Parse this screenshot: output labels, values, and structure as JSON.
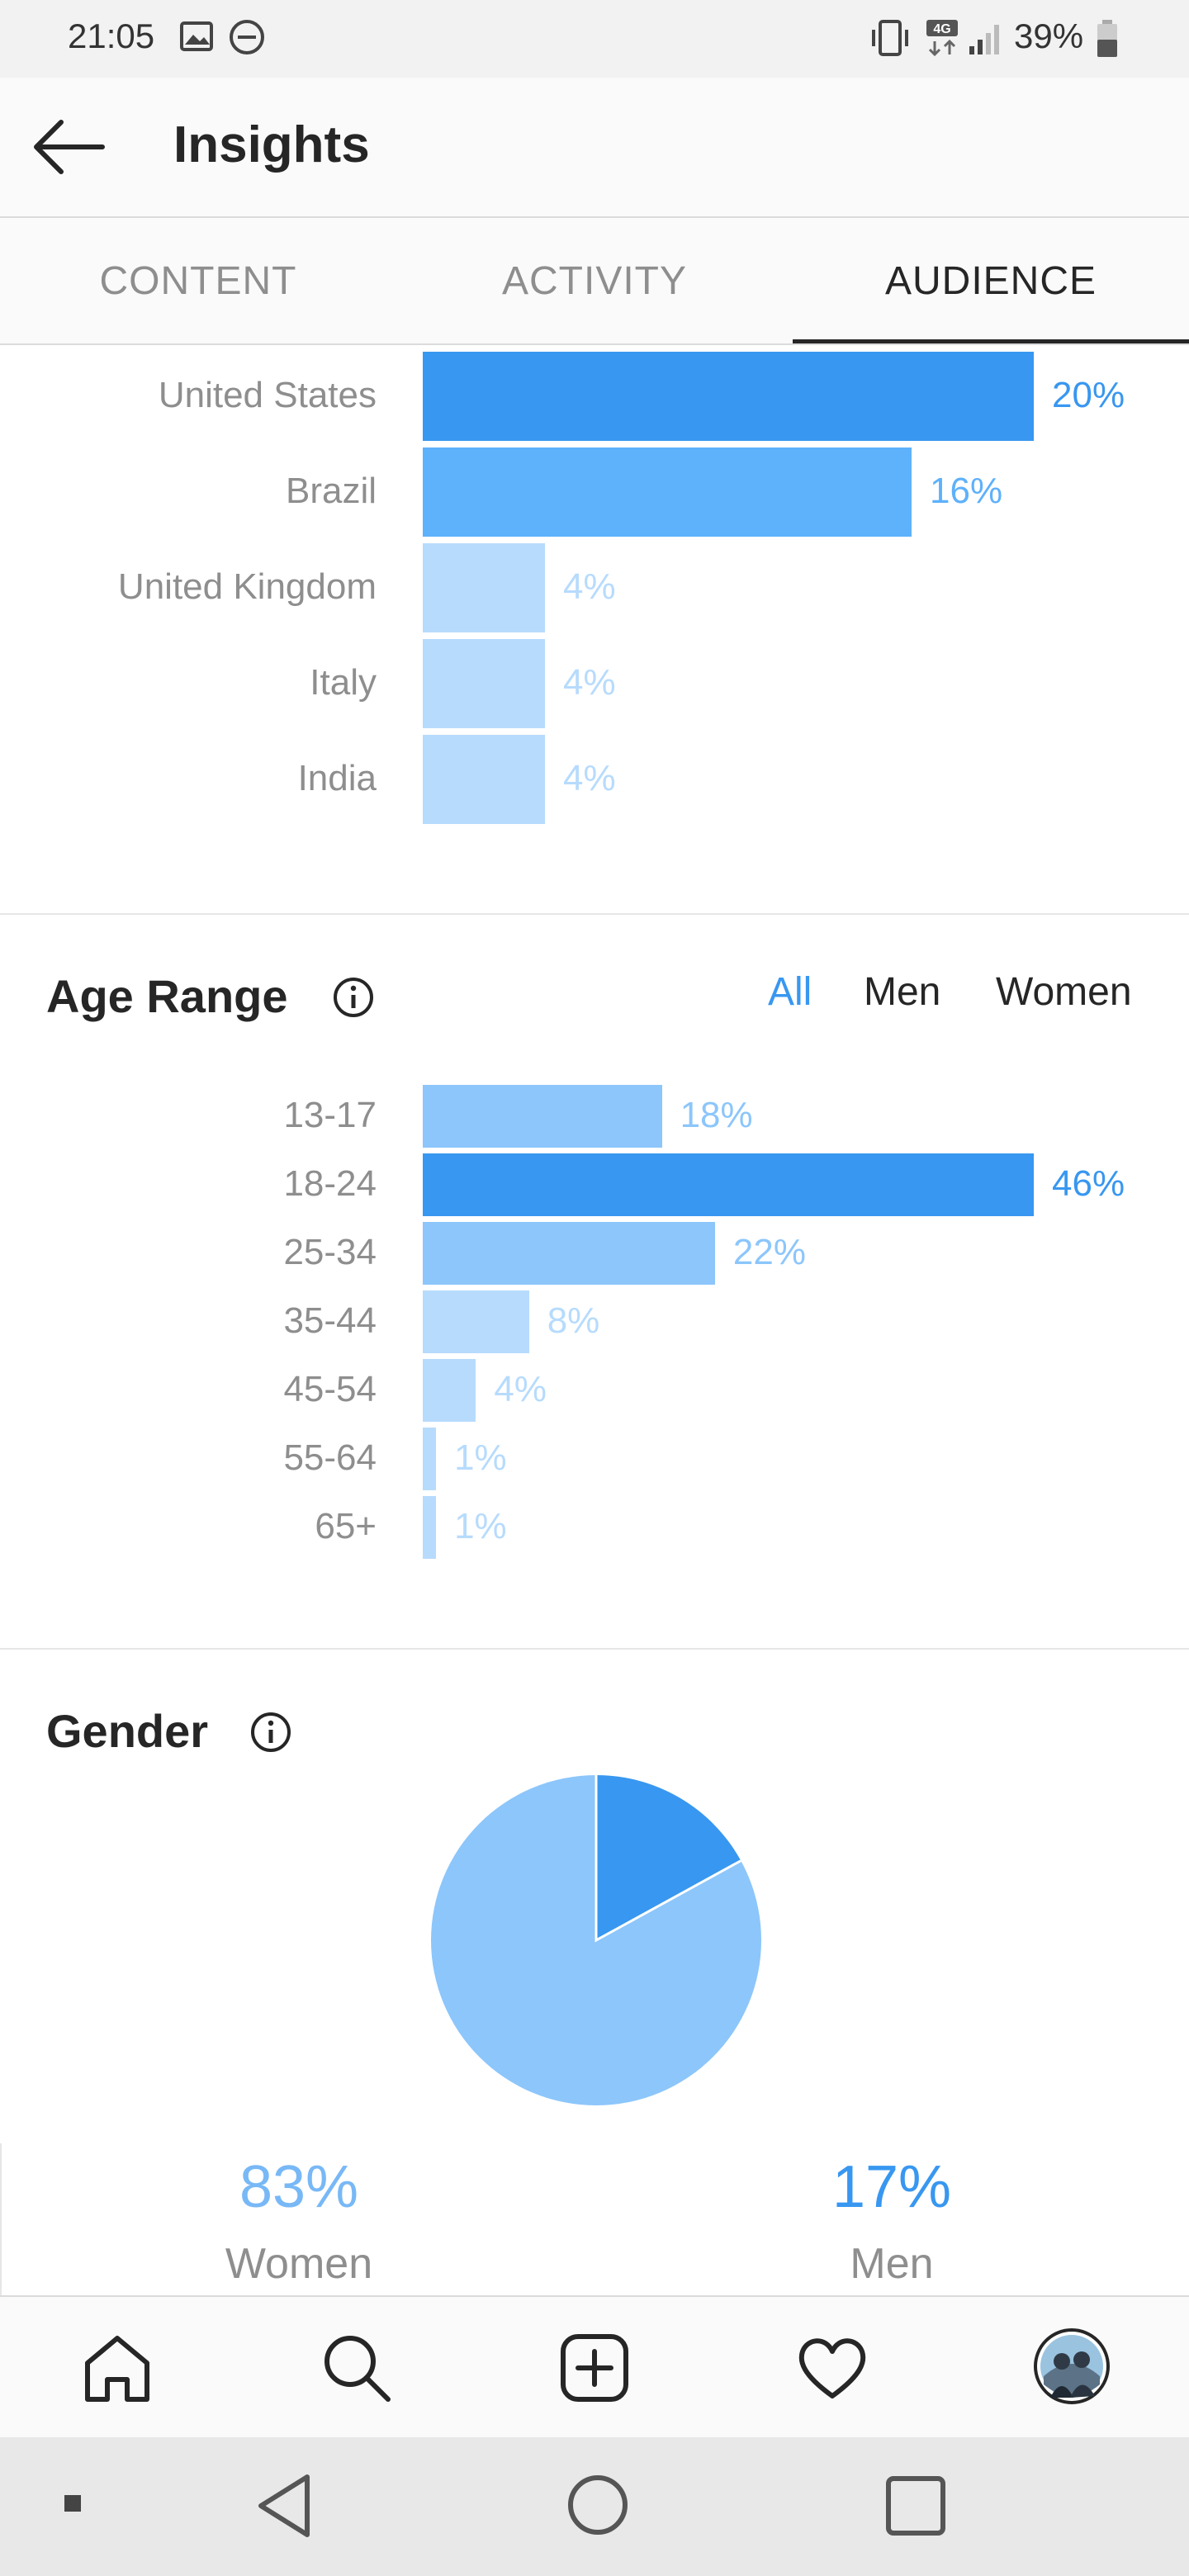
{
  "status_bar": {
    "time": "21:05",
    "battery": "39%",
    "icons": [
      "image-icon",
      "do-not-disturb-icon",
      "vibrate-icon",
      "4g-icon",
      "signal-icon",
      "battery-icon"
    ]
  },
  "app_bar": {
    "title": "Insights",
    "back_icon": "arrow-left-icon"
  },
  "tabs": [
    {
      "label": "CONTENT",
      "active": false
    },
    {
      "label": "ACTIVITY",
      "active": false
    },
    {
      "label": "AUDIENCE",
      "active": true
    }
  ],
  "locations": {
    "rows": [
      {
        "label": "United States",
        "percent": "20%",
        "value": 20
      },
      {
        "label": "Brazil",
        "percent": "16%",
        "value": 16
      },
      {
        "label": "United Kingdom",
        "percent": "4%",
        "value": 4
      },
      {
        "label": "Italy",
        "percent": "4%",
        "value": 4
      },
      {
        "label": "India",
        "percent": "4%",
        "value": 4
      }
    ]
  },
  "age_range": {
    "title": "Age Range",
    "filters": [
      {
        "label": "All",
        "active": true
      },
      {
        "label": "Men",
        "active": false
      },
      {
        "label": "Women",
        "active": false
      }
    ],
    "rows": [
      {
        "label": "13-17",
        "percent": "18%",
        "value": 18
      },
      {
        "label": "18-24",
        "percent": "46%",
        "value": 46
      },
      {
        "label": "25-34",
        "percent": "22%",
        "value": 22
      },
      {
        "label": "35-44",
        "percent": "8%",
        "value": 8
      },
      {
        "label": "45-54",
        "percent": "4%",
        "value": 4
      },
      {
        "label": "55-64",
        "percent": "1%",
        "value": 1
      },
      {
        "label": "65+",
        "percent": "1%",
        "value": 1
      }
    ]
  },
  "gender": {
    "title": "Gender",
    "women": {
      "percent": "83%",
      "label": "Women",
      "value": 83
    },
    "men": {
      "percent": "17%",
      "label": "Men",
      "value": 17
    }
  },
  "colors": {
    "accent": "#3897f0",
    "bar_strong": "#3897f0",
    "bar_mid": "#5eb1fb",
    "bar_light": "#8cc6fb",
    "bar_faint": "#b7dbfd",
    "pie_women": "#8cc6fb",
    "pie_men": "#3897f0"
  },
  "chart_data": [
    {
      "type": "bar",
      "categories": [
        "United States",
        "Brazil",
        "United Kingdom",
        "Italy",
        "India"
      ],
      "values": [
        20,
        16,
        4,
        4,
        4
      ],
      "data_labels": [
        "20%",
        "16%",
        "4%",
        "4%",
        "4%"
      ]
    },
    {
      "type": "bar",
      "title": "Age Range",
      "categories": [
        "13-17",
        "18-24",
        "25-34",
        "35-44",
        "45-54",
        "55-64",
        "65+"
      ],
      "values": [
        18,
        46,
        22,
        8,
        4,
        1,
        1
      ],
      "data_labels": [
        "18%",
        "46%",
        "22%",
        "8%",
        "4%",
        "1%",
        "1%"
      ]
    },
    {
      "type": "pie",
      "title": "Gender",
      "categories": [
        "Women",
        "Men"
      ],
      "values": [
        83,
        17
      ],
      "data_labels": [
        "83%",
        "17%"
      ]
    }
  ],
  "bottom_nav": [
    "home-icon",
    "search-icon",
    "new-post-icon",
    "activity-heart-icon",
    "profile-avatar"
  ],
  "android_nav": [
    "recent-apps-dot",
    "back-triangle",
    "home-circle",
    "overview-square"
  ]
}
